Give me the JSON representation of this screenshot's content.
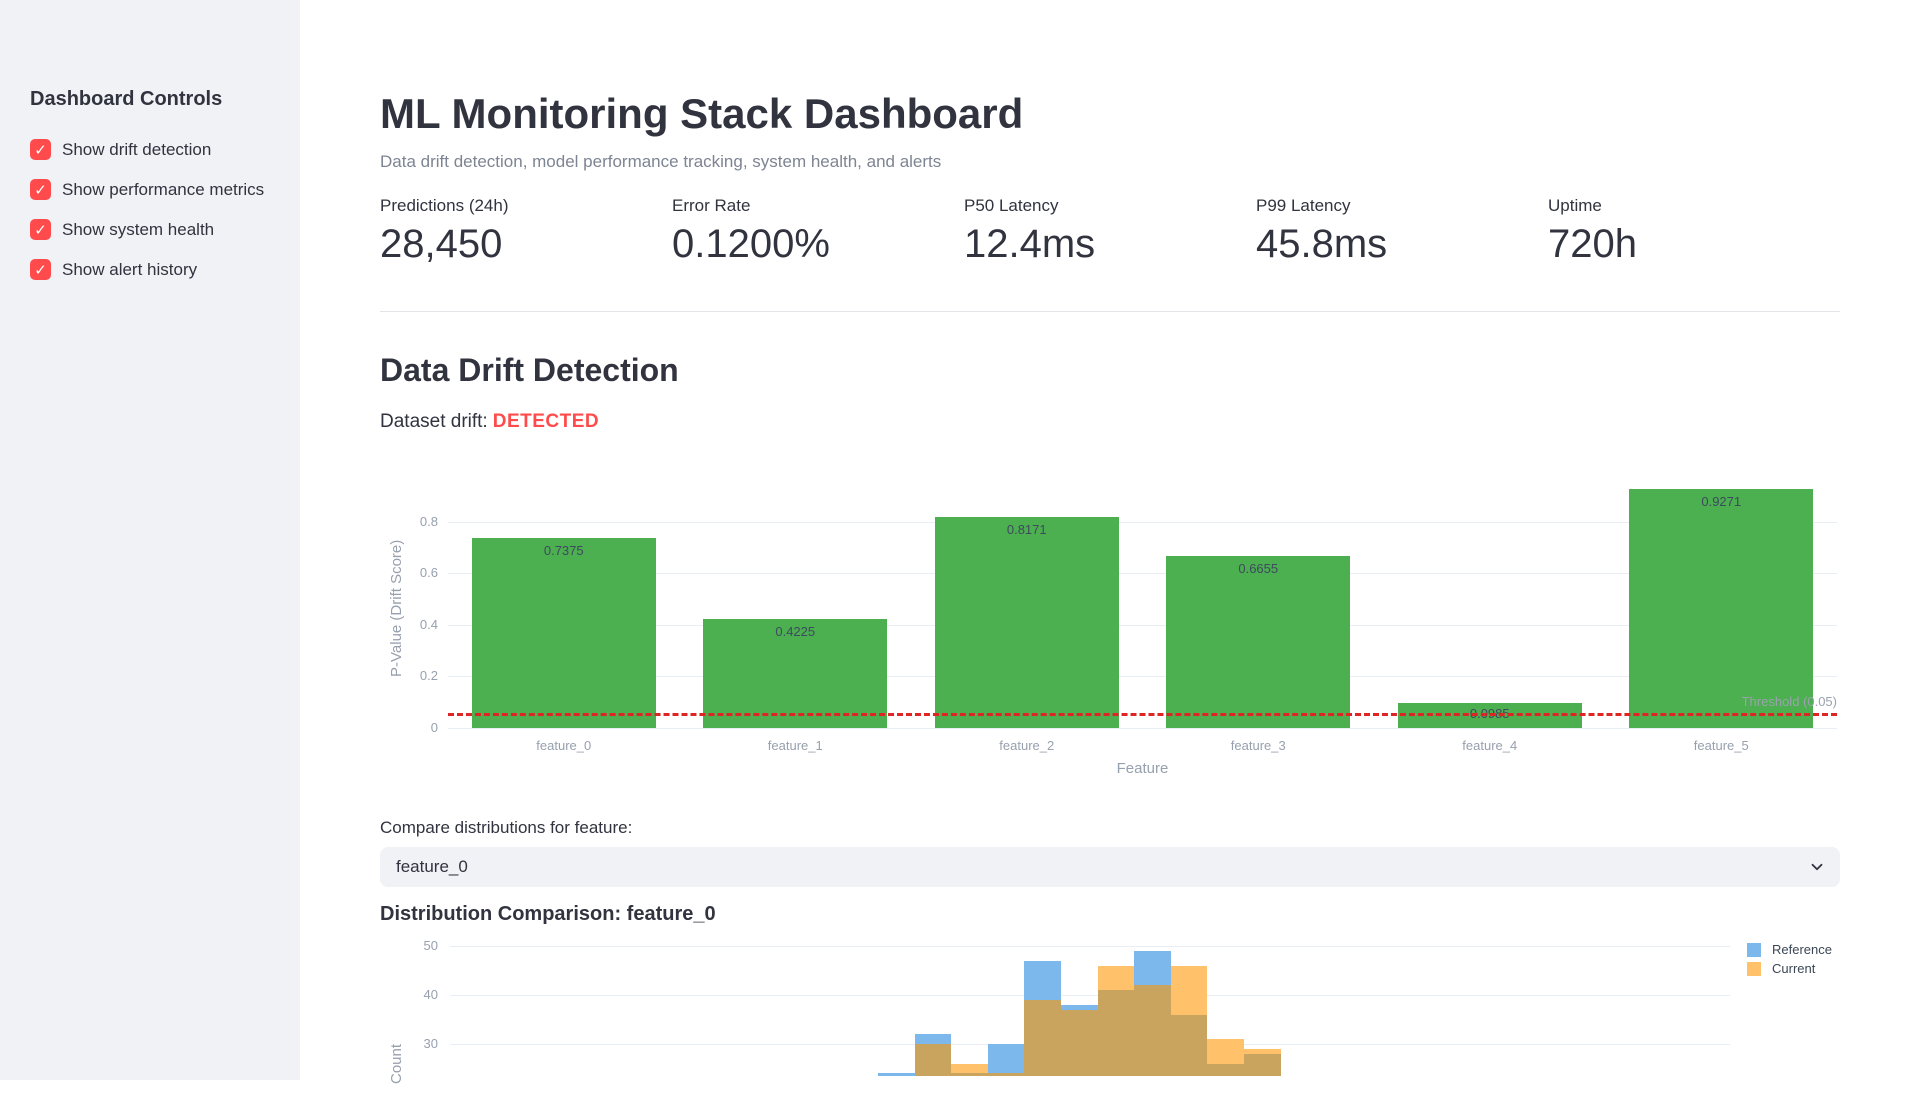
{
  "colors": {
    "accent_red": "#FF4B4B",
    "sidebar_bg": "#F0F2F6",
    "bar_green": "#4CAF50",
    "threshold_red": "#E02424",
    "hist_blue": "#7DB8EC",
    "hist_orange": "#FFC169",
    "hist_overlap": "#C8A45F"
  },
  "sidebar": {
    "title": "Dashboard Controls",
    "checkboxes": [
      {
        "label": "Show drift detection",
        "checked": true
      },
      {
        "label": "Show performance metrics",
        "checked": true
      },
      {
        "label": "Show system health",
        "checked": true
      },
      {
        "label": "Show alert history",
        "checked": true
      }
    ]
  },
  "header": {
    "title": "ML Monitoring Stack Dashboard",
    "caption": "Data drift detection, model performance tracking, system health, and alerts"
  },
  "metrics": [
    {
      "label": "Predictions (24h)",
      "value": "28,450"
    },
    {
      "label": "Error Rate",
      "value": "0.1200%"
    },
    {
      "label": "P50 Latency",
      "value": "12.4ms"
    },
    {
      "label": "P99 Latency",
      "value": "45.8ms"
    },
    {
      "label": "Uptime",
      "value": "720h"
    }
  ],
  "drift": {
    "heading": "Data Drift Detection",
    "status_label": "Dataset drift:",
    "status_value": "DETECTED",
    "compare_label": "Compare distributions for feature:",
    "select_value": "feature_0"
  },
  "dist": {
    "heading": "Distribution Comparison: feature_0"
  },
  "chart_data": [
    {
      "id": "drift_bars",
      "type": "bar",
      "title": "",
      "categories": [
        "feature_0",
        "feature_1",
        "feature_2",
        "feature_3",
        "feature_4",
        "feature_5"
      ],
      "values": [
        0.7375,
        0.4225,
        0.8171,
        0.6655,
        0.0985,
        0.9271
      ],
      "bar_labels": [
        "0.7375",
        "0.4225",
        "0.8171",
        "0.6655",
        "0.0985",
        "0.9271"
      ],
      "xlabel": "Feature",
      "ylabel": "P-Value (Drift Score)",
      "yticks": [
        0,
        0.2,
        0.4,
        0.6,
        0.8
      ],
      "ytick_labels": [
        "0",
        "0.2",
        "0.4",
        "0.6",
        "0.8"
      ],
      "ylim": [
        0,
        0.975
      ],
      "grid": true,
      "bar_color": "#4CAF50",
      "threshold": {
        "y": 0.05,
        "label": "Threshold (0.05)",
        "color": "#E02424",
        "style": "dashed"
      }
    },
    {
      "id": "dist_histogram",
      "type": "bar",
      "subtype": "overlaid-histogram",
      "title": "Distribution Comparison: feature_0",
      "ylabel": "Count",
      "yticks": [
        30,
        40,
        50
      ],
      "ytick_labels": [
        "30",
        "40",
        "50"
      ],
      "visible_y_range": [
        23,
        50
      ],
      "grid": true,
      "legend_position": "top-right",
      "legend": [
        {
          "name": "Reference",
          "color": "#7DB8EC"
        },
        {
          "name": "Current",
          "color": "#FFC169"
        }
      ],
      "series": [
        {
          "name": "Reference",
          "values": [
            24,
            32,
            24,
            30,
            47,
            38,
            41,
            49,
            36,
            26,
            28
          ]
        },
        {
          "name": "Current",
          "values": [
            23,
            30,
            26,
            24,
            39,
            37,
            46,
            42,
            46,
            31,
            29
          ]
        }
      ],
      "note": "Histogram bottom is clipped by the viewport; only counts above ~23 are visible."
    }
  ]
}
